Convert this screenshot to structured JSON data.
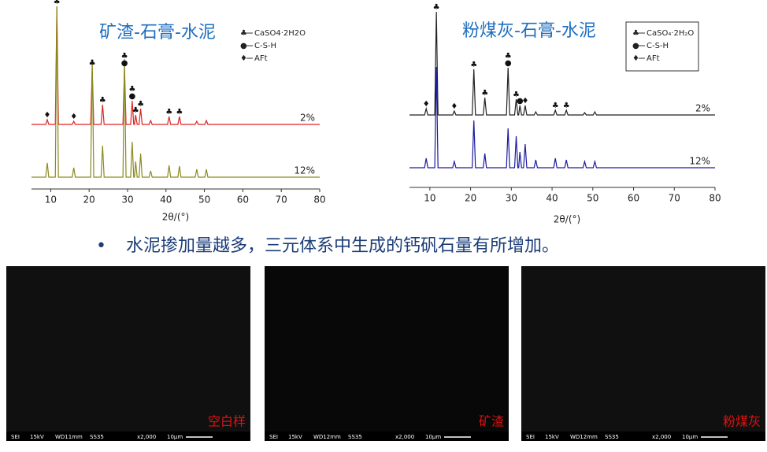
{
  "chart_data": [
    {
      "type": "line",
      "title": "矿渣-石膏-水泥",
      "x_label": "2θ/(°)",
      "x": [
        5,
        8.7,
        9.1,
        9.5,
        11.2,
        11.6,
        12.0,
        15.6,
        16,
        16.4,
        20.4,
        20.8,
        21.2,
        23.1,
        23.5,
        23.9,
        28.8,
        29.2,
        29.6,
        30.8,
        31.2,
        31.6,
        31.8,
        32.1,
        32.5,
        33,
        33.4,
        33.8,
        35.6,
        36,
        36.4,
        40.4,
        40.8,
        41.2,
        43.1,
        43.5,
        43.9,
        47.6,
        48,
        48.4,
        50.1,
        50.5,
        50.9,
        80
      ],
      "series": [
        {
          "name": "2%",
          "color": "#e02020",
          "values": [
            0,
            0,
            6,
            0,
            0,
            150,
            0,
            0,
            4,
            0,
            0,
            72,
            0,
            0,
            25,
            0,
            0,
            72,
            0,
            0,
            30,
            0,
            0,
            12,
            0,
            0,
            20,
            0,
            0,
            5,
            0,
            0,
            10,
            0,
            0,
            10,
            0,
            0,
            4,
            0,
            0,
            5,
            0,
            0
          ]
        },
        {
          "name": "12%",
          "color": "#8a8a1e",
          "values": [
            0,
            0,
            18,
            0,
            0,
            217,
            0,
            0,
            12,
            0,
            0,
            150,
            0,
            0,
            40,
            0,
            0,
            150,
            0,
            0,
            45,
            0,
            0,
            20,
            0,
            0,
            30,
            0,
            0,
            8,
            0,
            0,
            15,
            0,
            0,
            14,
            0,
            0,
            10,
            0,
            0,
            10,
            0,
            0
          ]
        }
      ],
      "xlim": [
        5,
        80
      ],
      "xticks": [
        10,
        20,
        30,
        40,
        50,
        60,
        70,
        80
      ],
      "legend": [
        {
          "symbol": "♣",
          "label": "CaSO4·2H2O"
        },
        {
          "symbol": "●",
          "label": "C-S-H"
        },
        {
          "symbol": "♦",
          "label": "AFt"
        }
      ],
      "legend_box": false,
      "peak_marks": [
        {
          "x": 9.1,
          "symbol": "♦"
        },
        {
          "x": 11.6,
          "symbol": "♣"
        },
        {
          "x": 16,
          "symbol": "♦"
        },
        {
          "x": 20.8,
          "symbol": "♣"
        },
        {
          "x": 23.5,
          "symbol": "♣"
        },
        {
          "x": 29.2,
          "symbol": "●"
        },
        {
          "x": 29.2,
          "symbol": "♣"
        },
        {
          "x": 31.2,
          "symbol": "●"
        },
        {
          "x": 31.2,
          "symbol": "♣"
        },
        {
          "x": 32.1,
          "symbol": "♣"
        },
        {
          "x": 33.4,
          "symbol": "♣"
        },
        {
          "x": 40.8,
          "symbol": "♣"
        },
        {
          "x": 43.5,
          "symbol": "♣"
        }
      ]
    },
    {
      "type": "line",
      "title": "粉煤灰-石膏-水泥",
      "x_label": "2θ/(°)",
      "x": [
        5,
        8.7,
        9.1,
        9.5,
        11.2,
        11.6,
        12.0,
        15.6,
        16,
        16.4,
        20.4,
        20.8,
        21.2,
        23.1,
        23.5,
        23.9,
        28.8,
        29.2,
        29.6,
        30.8,
        31.2,
        31.6,
        31.8,
        32.1,
        32.5,
        33,
        33.4,
        33.8,
        35.6,
        36,
        36.4,
        40.4,
        40.8,
        41.2,
        43.1,
        43.5,
        43.9,
        47.6,
        48,
        48.4,
        50.1,
        50.5,
        50.9,
        80
      ],
      "series": [
        {
          "name": "2%",
          "color": "#222222",
          "values": [
            0,
            0,
            8,
            0,
            0,
            131,
            0,
            0,
            5,
            0,
            0,
            58,
            0,
            0,
            22,
            0,
            0,
            60,
            0,
            0,
            20,
            0,
            0,
            12,
            0,
            0,
            12,
            0,
            0,
            4,
            0,
            0,
            6,
            0,
            0,
            6,
            0,
            0,
            3,
            0,
            0,
            4,
            0,
            0
          ]
        },
        {
          "name": "12%",
          "color": "#1a1aa0",
          "values": [
            0,
            0,
            12,
            0,
            0,
            128,
            0,
            0,
            8,
            0,
            0,
            60,
            0,
            0,
            18,
            0,
            0,
            50,
            0,
            0,
            40,
            0,
            0,
            20,
            0,
            0,
            30,
            0,
            0,
            10,
            0,
            0,
            12,
            0,
            0,
            10,
            0,
            0,
            8,
            0,
            0,
            8,
            0,
            0
          ]
        }
      ],
      "xlim": [
        5,
        80
      ],
      "xticks": [
        10,
        20,
        30,
        40,
        50,
        60,
        70,
        80
      ],
      "legend": [
        {
          "symbol": "♣",
          "label": "CaSO₄·2H₂O"
        },
        {
          "symbol": "●",
          "label": "C-S-H"
        },
        {
          "symbol": "♦",
          "label": "AFt"
        }
      ],
      "legend_box": true,
      "peak_marks": [
        {
          "x": 9.1,
          "symbol": "♦"
        },
        {
          "x": 11.6,
          "symbol": "♣"
        },
        {
          "x": 16,
          "symbol": "♦"
        },
        {
          "x": 20.8,
          "symbol": "♣"
        },
        {
          "x": 23.5,
          "symbol": "♣"
        },
        {
          "x": 29.2,
          "symbol": "●"
        },
        {
          "x": 29.2,
          "symbol": "♣"
        },
        {
          "x": 31.2,
          "symbol": "♣"
        },
        {
          "x": 32.1,
          "symbol": "●"
        },
        {
          "x": 33.4,
          "symbol": "♦"
        },
        {
          "x": 40.8,
          "symbol": "♣"
        },
        {
          "x": 43.5,
          "symbol": "♣"
        }
      ]
    }
  ],
  "bullet": {
    "marker": "•",
    "text": "水泥掺加量越多，三元体系中生成的钙矾石量有所增加。"
  },
  "images": [
    {
      "label": "空白样",
      "info": [
        "SEI",
        "15kV",
        "WD11mm",
        "SS35",
        "x2,000",
        "10μm"
      ]
    },
    {
      "label": "矿渣",
      "info": [
        "SEI",
        "15kV",
        "WD12mm",
        "SS35",
        "x2,000",
        "10μm"
      ]
    },
    {
      "label": "粉煤灰",
      "info": [
        "SEI",
        "15kV",
        "WD12mm",
        "SS35",
        "x2,000",
        "10μm"
      ]
    }
  ]
}
